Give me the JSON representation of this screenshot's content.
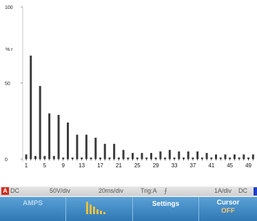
{
  "chart_data": {
    "type": "bar",
    "y_ticks": [
      "100",
      "50",
      "0"
    ],
    "y_unit_label": "% r",
    "ylim": [
      0,
      100
    ],
    "x_tick_labels": [
      "1",
      "5",
      "9",
      "13",
      "17",
      "21",
      "25",
      "29",
      "33",
      "37",
      "41",
      "45",
      "49"
    ],
    "harmonics": [
      1,
      2,
      3,
      4,
      5,
      6,
      7,
      8,
      9,
      10,
      11,
      12,
      13,
      14,
      15,
      16,
      17,
      18,
      19,
      20,
      21,
      22,
      23,
      24,
      25,
      26,
      27,
      28,
      29,
      30,
      31,
      32,
      33,
      34,
      35,
      36,
      37,
      38,
      39,
      40,
      41,
      42,
      43,
      44,
      45,
      46,
      47,
      48,
      49,
      50
    ],
    "values": [
      3,
      68,
      2,
      48,
      2,
      30,
      2,
      29,
      1,
      24,
      1,
      16,
      1,
      16,
      1,
      14,
      1,
      10,
      1,
      10,
      1,
      6,
      1,
      4,
      1,
      4,
      1,
      4,
      1,
      5,
      1,
      6,
      1,
      5,
      1,
      5,
      1,
      5,
      1,
      4,
      1,
      3,
      1,
      3,
      1,
      3,
      1,
      3,
      1,
      3
    ],
    "bar_color": "#3a3a3a"
  },
  "status_bar": {
    "channel_a": "A",
    "coupling_a": "DC",
    "volts_div": "50V/div",
    "time_div": "20ms/div",
    "trigger": "Trig:A",
    "trigger_slope": "⨍",
    "amps_div": "1A/div",
    "coupling_b": "DC"
  },
  "softkeys": {
    "amps": "AMPS",
    "settings": "Settings",
    "cursor": "Cursor",
    "cursor_state": "OFF"
  }
}
